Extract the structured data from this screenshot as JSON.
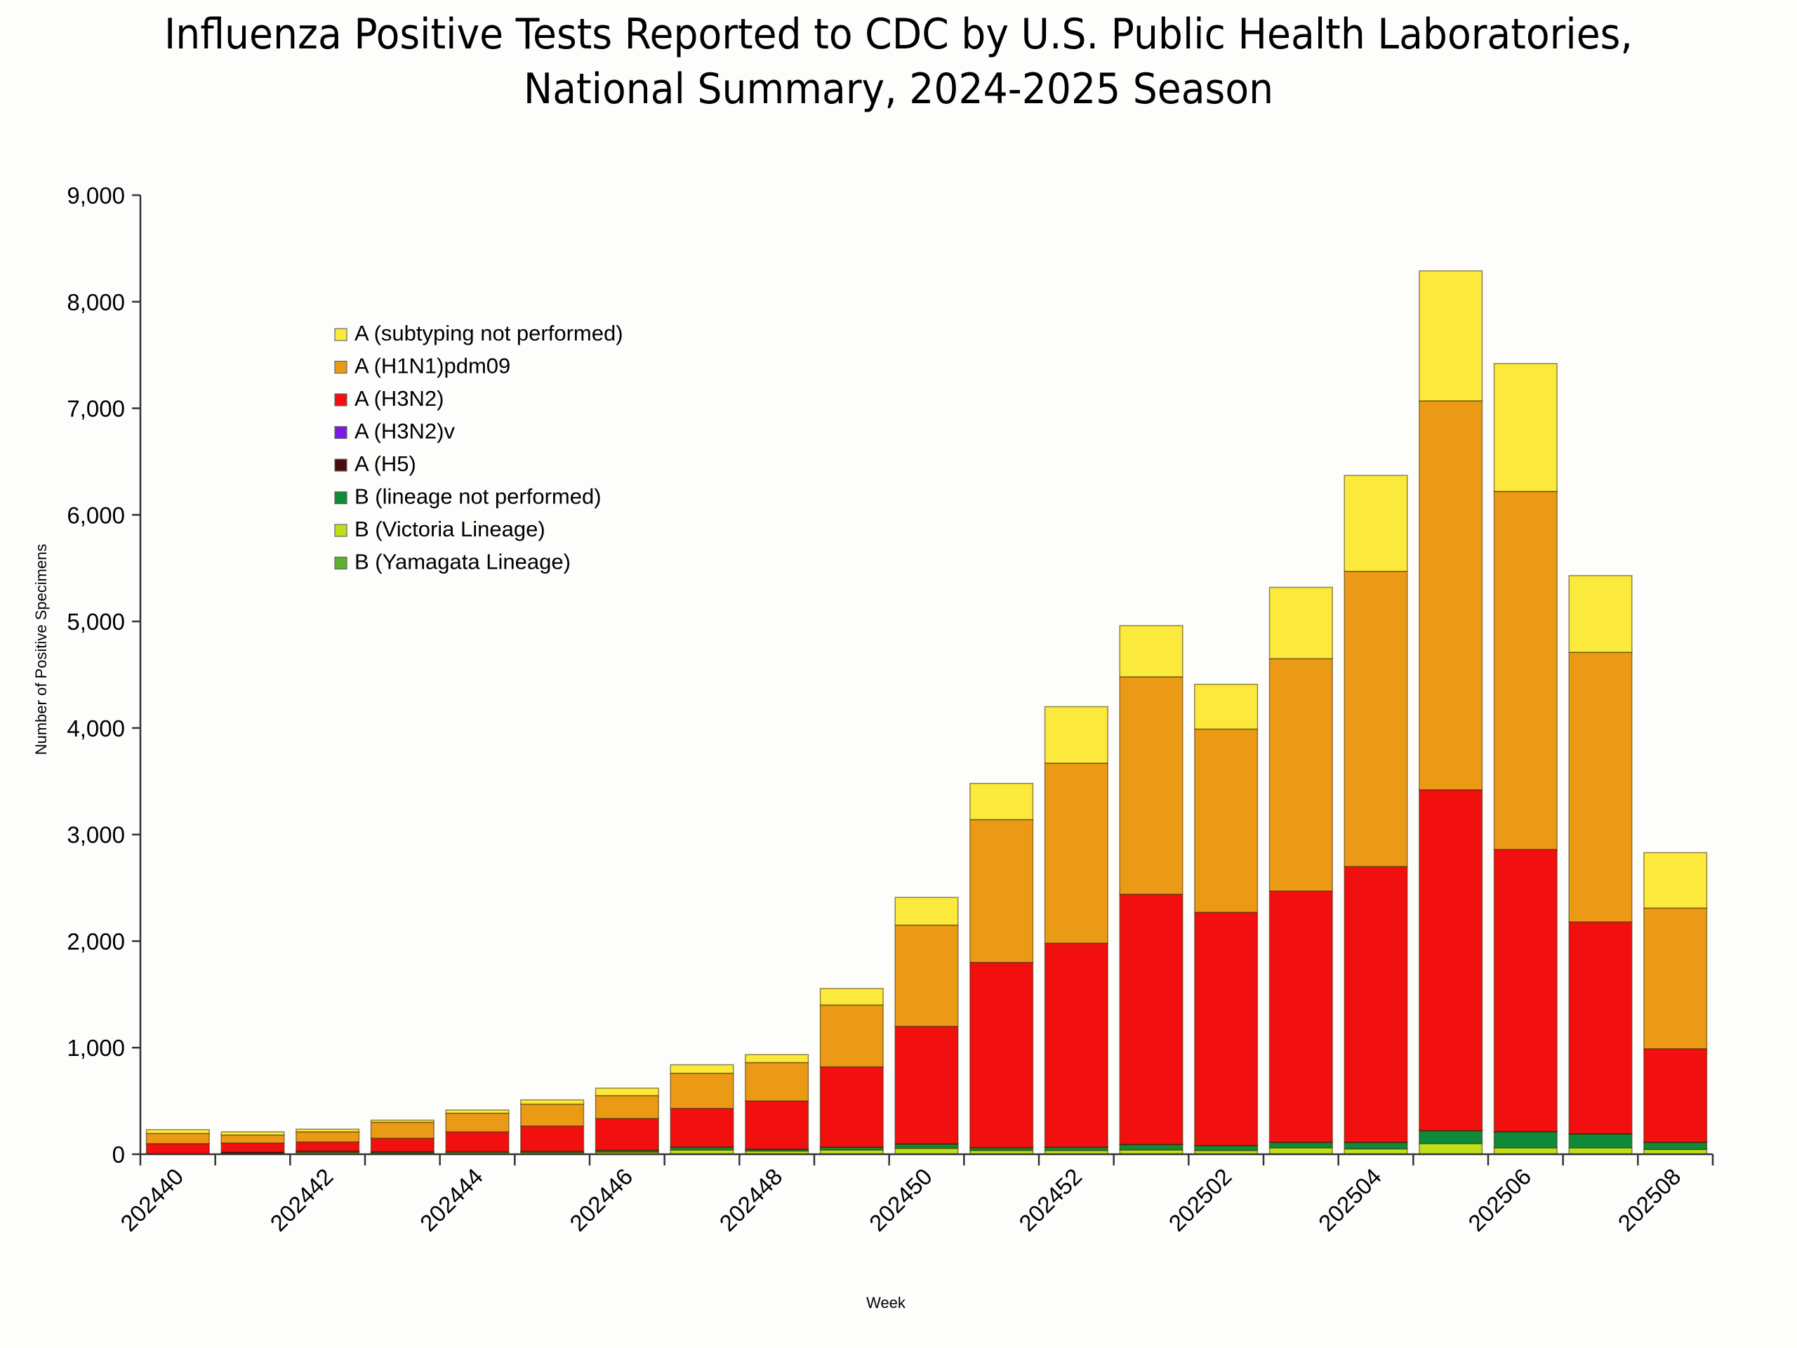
{
  "chart_data": {
    "type": "bar",
    "stacked": true,
    "title": "Influenza Positive Tests Reported to CDC by U.S. Public Health Laboratories, National Summary, 2024-2025 Season",
    "title_lines": [
      "Influenza Positive Tests Reported to CDC by U.S. Public Health Laboratories,",
      "National Summary, 2024-2025 Season"
    ],
    "xlabel": "Week",
    "ylabel": "Number of Positive Specimens",
    "ylim": [
      0,
      9000
    ],
    "yticks": [
      0,
      1000,
      2000,
      3000,
      4000,
      5000,
      6000,
      7000,
      8000,
      9000
    ],
    "ytick_labels": [
      "0",
      "1,000",
      "2,000",
      "3,000",
      "4,000",
      "5,000",
      "6,000",
      "7,000",
      "8,000",
      "9,000"
    ],
    "categories": [
      "202440",
      "202441",
      "202442",
      "202443",
      "202444",
      "202445",
      "202446",
      "202447",
      "202448",
      "202449",
      "202450",
      "202451",
      "202452",
      "202501",
      "202502",
      "202503",
      "202504",
      "202505",
      "202506",
      "202507",
      "202508"
    ],
    "xtick_labels": [
      "202440",
      "202442",
      "202444",
      "202446",
      "202448",
      "202450",
      "202452",
      "202502",
      "202504",
      "202506",
      "202508"
    ],
    "legend_position": "upper-left",
    "grid": false,
    "series": [
      {
        "name": "B (Yamagata Lineage)",
        "color": "#5db12f",
        "values": [
          0,
          0,
          0,
          0,
          0,
          0,
          0,
          0,
          0,
          0,
          0,
          0,
          0,
          0,
          0,
          0,
          0,
          0,
          0,
          0,
          0
        ]
      },
      {
        "name": "B (Victoria Lineage)",
        "color": "#bde01a",
        "values": [
          2,
          3,
          15,
          12,
          15,
          15,
          20,
          40,
          30,
          40,
          55,
          35,
          35,
          40,
          35,
          60,
          50,
          100,
          60,
          60,
          45
        ]
      },
      {
        "name": "B (lineage not performed)",
        "color": "#0e8a3a",
        "values": [
          3,
          3,
          10,
          8,
          10,
          12,
          15,
          25,
          15,
          25,
          40,
          25,
          30,
          50,
          45,
          50,
          60,
          120,
          150,
          130,
          65
        ]
      },
      {
        "name": "A (H5)",
        "color": "#4a0d0d",
        "values": [
          0,
          15,
          5,
          5,
          0,
          2,
          3,
          3,
          3,
          2,
          3,
          3,
          2,
          3,
          3,
          3,
          3,
          3,
          3,
          3,
          3
        ]
      },
      {
        "name": "A (H3N2)v",
        "color": "#7a1ae6",
        "values": [
          0,
          0,
          0,
          0,
          0,
          0,
          0,
          0,
          0,
          0,
          0,
          0,
          0,
          0,
          0,
          0,
          0,
          0,
          0,
          0,
          0
        ]
      },
      {
        "name": "A (H3N2)",
        "color": "#f20f0f",
        "values": [
          95,
          84,
          85,
          125,
          185,
          236,
          297,
          362,
          452,
          753,
          1102,
          1737,
          1913,
          2347,
          2187,
          2357,
          2587,
          3197,
          2647,
          1987,
          877
        ]
      },
      {
        "name": "A (H1N1)pdm09",
        "color": "#eb9a16",
        "values": [
          95,
          75,
          95,
          150,
          175,
          205,
          215,
          330,
          360,
          580,
          950,
          1340,
          1690,
          2040,
          1720,
          2180,
          2770,
          3650,
          3360,
          2530,
          1320
        ]
      },
      {
        "name": "A (subtyping not performed)",
        "color": "#fbea3c",
        "values": [
          35,
          30,
          25,
          20,
          30,
          40,
          70,
          80,
          75,
          155,
          260,
          340,
          530,
          480,
          420,
          670,
          900,
          1220,
          1200,
          720,
          520
        ]
      }
    ],
    "legend": [
      {
        "label": "A (subtyping not performed)",
        "color": "#fbea3c"
      },
      {
        "label": "A (H1N1)pdm09",
        "color": "#eb9a16"
      },
      {
        "label": "A (H3N2)",
        "color": "#f20f0f"
      },
      {
        "label": "A (H3N2)v",
        "color": "#7a1ae6"
      },
      {
        "label": "A (H5)",
        "color": "#4a0d0d"
      },
      {
        "label": "B (lineage not performed)",
        "color": "#0e8a3a"
      },
      {
        "label": "B (Victoria Lineage)",
        "color": "#bde01a"
      },
      {
        "label": "B (Yamagata Lineage)",
        "color": "#5db12f"
      }
    ]
  }
}
